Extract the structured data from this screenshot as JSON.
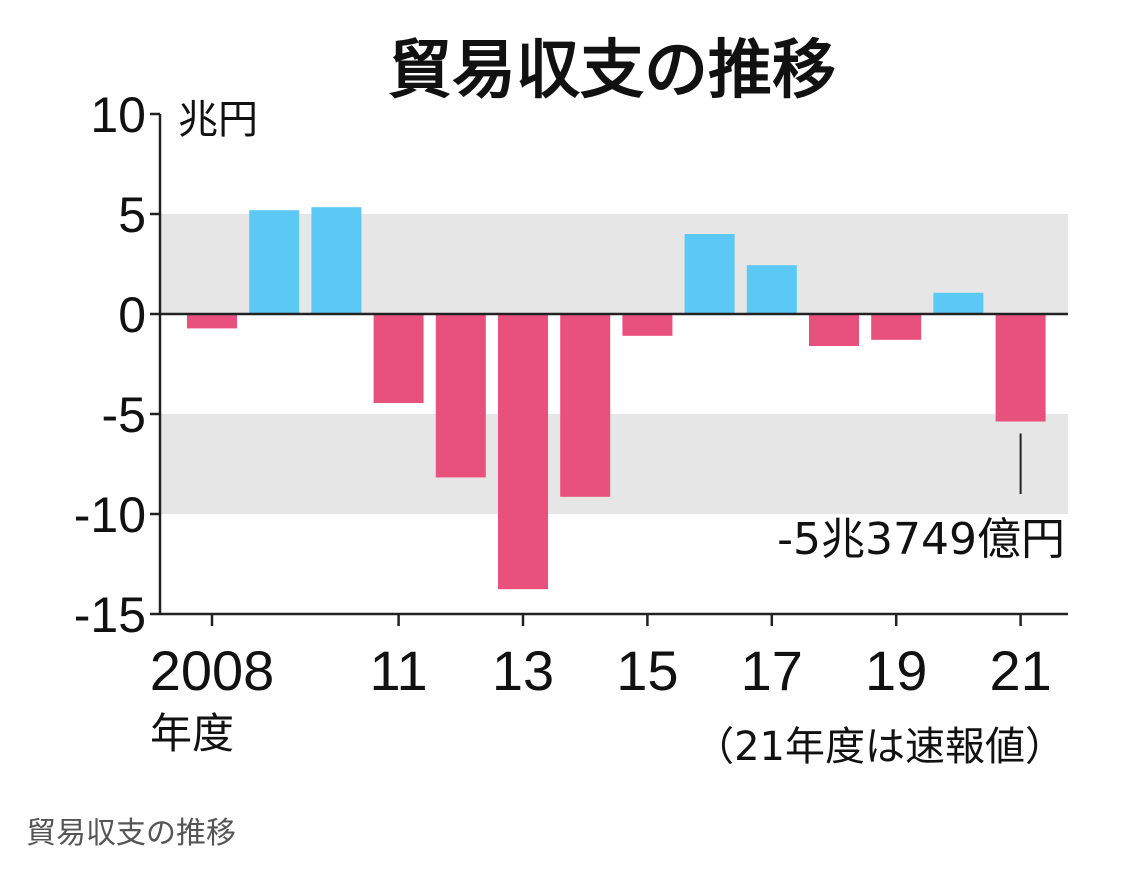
{
  "chart_data": {
    "type": "bar",
    "title": "貿易収支の推移",
    "y_unit": "兆円",
    "x_unit": "年度",
    "categories": [
      "2008",
      "2009",
      "2010",
      "2011",
      "2012",
      "2013",
      "2014",
      "2015",
      "2016",
      "2017",
      "2018",
      "2019",
      "2020",
      "2021"
    ],
    "values": [
      -0.72,
      5.19,
      5.34,
      -4.45,
      -8.17,
      -13.76,
      -9.14,
      -1.09,
      4.0,
      2.44,
      -1.6,
      -1.29,
      1.06,
      -5.3749
    ],
    "ylim": [
      -15,
      10
    ],
    "yticks": [
      "10",
      "5",
      "0",
      "-5",
      "-10",
      "-15"
    ],
    "xtick_labels": [
      "2008",
      "11",
      "13",
      "15",
      "17",
      "19",
      "21"
    ],
    "shaded_bands": [
      [
        0,
        5
      ],
      [
        -10,
        -5
      ]
    ],
    "annotation": "-5兆3749億円",
    "note": "（21年度は速報値）",
    "colors": {
      "positive": "#5bc8f5",
      "negative": "#e8507e",
      "band": "#e6e6e6",
      "axis": "#222222"
    }
  },
  "caption": "貿易収支の推移"
}
